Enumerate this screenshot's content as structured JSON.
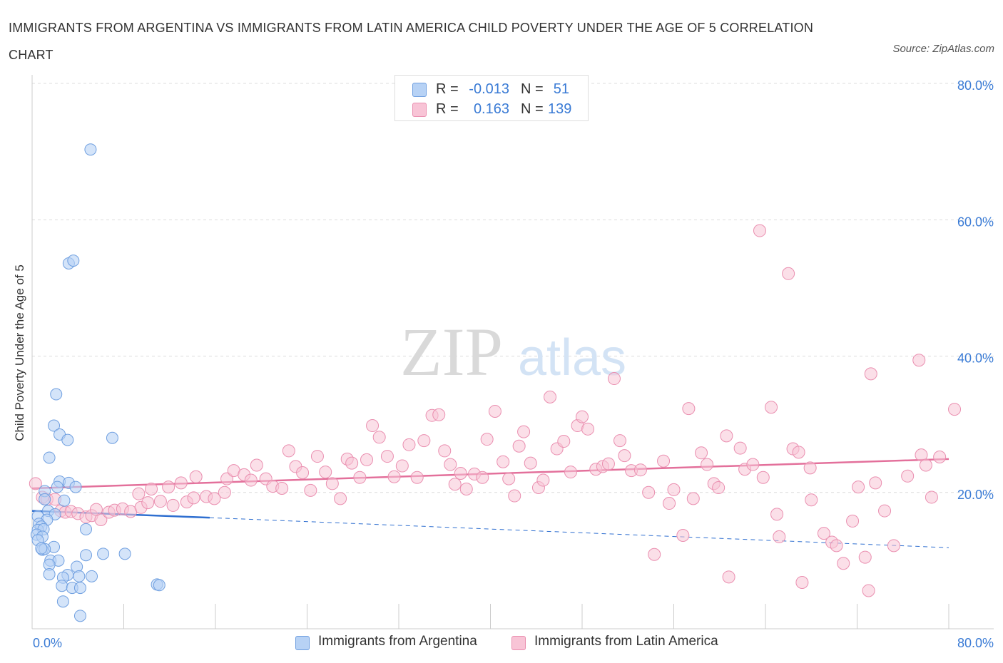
{
  "title": "IMMIGRANTS FROM ARGENTINA VS IMMIGRANTS FROM LATIN AMERICA CHILD POVERTY UNDER THE AGE OF 5 CORRELATION CHART",
  "source": "Source: ZipAtlas.com",
  "watermark": {
    "zip": "ZIP",
    "atlas": "atlas"
  },
  "legend": {
    "rows": [
      {
        "r_label": "R =",
        "r_value": "-0.013",
        "n_label": "N =",
        "n_value": "51"
      },
      {
        "r_label": "R =",
        "r_value": "0.163",
        "n_label": "N =",
        "n_value": "139"
      }
    ]
  },
  "bottom_legend": {
    "argentina": "Immigrants from Argentina",
    "latin_america": "Immigrants from Latin America"
  },
  "colors": {
    "argentina_fill": "#b7d2f5",
    "argentina_stroke": "#6f9fe0",
    "argentina_line": "#2f6fd0",
    "latin_fill": "#f8c4d6",
    "latin_stroke": "#ea8fb0",
    "latin_line": "#e3709b",
    "axis_label": "#3a7bd5",
    "grid": "#dcdcdc"
  },
  "chart_data": {
    "type": "scatter",
    "title": "IMMIGRANTS FROM ARGENTINA VS IMMIGRANTS FROM LATIN AMERICA CHILD POVERTY UNDER THE AGE OF 5 CORRELATION CHART",
    "xlabel": "",
    "ylabel": "Child Poverty Under the Age of 5",
    "xlim": [
      0,
      80
    ],
    "ylim": [
      0,
      80
    ],
    "x_tick_labels": [
      "0.0%",
      "80.0%"
    ],
    "y_tick_labels": [
      "20.0%",
      "40.0%",
      "60.0%",
      "80.0%"
    ],
    "y_ticks": [
      20,
      40,
      60,
      80
    ],
    "grid": true,
    "legend_position": "top-center",
    "series": [
      {
        "name": "Immigrants from Argentina",
        "R": -0.013,
        "N": 51,
        "trend": {
          "x": [
            0,
            15.5
          ],
          "y": [
            17.3,
            16.3
          ],
          "dashed_to": [
            80,
            11.9
          ]
        },
        "points": [
          [
            5.1,
            70.3
          ],
          [
            3.2,
            53.6
          ],
          [
            3.6,
            54.0
          ],
          [
            2.1,
            34.4
          ],
          [
            1.9,
            29.8
          ],
          [
            2.4,
            28.5
          ],
          [
            3.1,
            27.7
          ],
          [
            7.0,
            28.0
          ],
          [
            1.5,
            25.1
          ],
          [
            2.4,
            21.6
          ],
          [
            3.2,
            21.4
          ],
          [
            2.2,
            20.8
          ],
          [
            3.8,
            20.8
          ],
          [
            1.1,
            20.2
          ],
          [
            1.1,
            19.0
          ],
          [
            2.8,
            18.8
          ],
          [
            1.4,
            17.3
          ],
          [
            2.0,
            16.8
          ],
          [
            0.5,
            16.5
          ],
          [
            1.3,
            16.0
          ],
          [
            0.6,
            15.4
          ],
          [
            0.8,
            15.0
          ],
          [
            0.5,
            14.5
          ],
          [
            1.0,
            14.6
          ],
          [
            4.7,
            14.6
          ],
          [
            0.4,
            13.8
          ],
          [
            0.9,
            13.5
          ],
          [
            0.5,
            13.0
          ],
          [
            1.9,
            12.0
          ],
          [
            0.9,
            11.6
          ],
          [
            1.1,
            11.7
          ],
          [
            0.8,
            11.8
          ],
          [
            4.7,
            10.8
          ],
          [
            6.2,
            11.0
          ],
          [
            8.1,
            11.0
          ],
          [
            1.6,
            10.0
          ],
          [
            2.3,
            10.0
          ],
          [
            1.5,
            9.4
          ],
          [
            3.9,
            9.1
          ],
          [
            1.5,
            8.0
          ],
          [
            3.1,
            7.9
          ],
          [
            2.7,
            7.5
          ],
          [
            4.1,
            7.7
          ],
          [
            5.2,
            7.7
          ],
          [
            2.6,
            6.3
          ],
          [
            3.5,
            6.0
          ],
          [
            4.2,
            6.0
          ],
          [
            10.9,
            6.5
          ],
          [
            11.1,
            6.4
          ],
          [
            2.7,
            4.0
          ],
          [
            4.2,
            1.9
          ]
        ]
      },
      {
        "name": "Immigrants from Latin America",
        "R": 0.163,
        "N": 139,
        "trend": {
          "x": [
            0,
            80
          ],
          "y": [
            20.6,
            24.9
          ]
        },
        "points": [
          [
            0.3,
            21.3
          ],
          [
            0.9,
            19.3
          ],
          [
            1.3,
            19.0
          ],
          [
            2.0,
            19.0
          ],
          [
            2.5,
            17.3
          ],
          [
            2.9,
            17.1
          ],
          [
            3.4,
            17.2
          ],
          [
            4.0,
            16.9
          ],
          [
            4.7,
            16.4
          ],
          [
            5.2,
            16.6
          ],
          [
            6.0,
            16.0
          ],
          [
            5.6,
            17.5
          ],
          [
            6.7,
            17.1
          ],
          [
            7.2,
            17.4
          ],
          [
            7.9,
            17.6
          ],
          [
            8.6,
            17.2
          ],
          [
            9.5,
            17.8
          ],
          [
            10.1,
            18.5
          ],
          [
            11.2,
            18.7
          ],
          [
            12.3,
            18.1
          ],
          [
            13.5,
            18.6
          ],
          [
            14.1,
            19.2
          ],
          [
            15.2,
            19.4
          ],
          [
            15.9,
            19.1
          ],
          [
            16.8,
            20.0
          ],
          [
            9.3,
            19.8
          ],
          [
            10.4,
            20.5
          ],
          [
            11.9,
            20.8
          ],
          [
            13.0,
            21.4
          ],
          [
            14.3,
            22.3
          ],
          [
            17.0,
            22.0
          ],
          [
            17.6,
            23.2
          ],
          [
            18.5,
            22.6
          ],
          [
            19.1,
            21.8
          ],
          [
            19.6,
            24.0
          ],
          [
            20.4,
            22.0
          ],
          [
            21.0,
            20.9
          ],
          [
            21.8,
            20.6
          ],
          [
            22.4,
            26.1
          ],
          [
            23.0,
            23.8
          ],
          [
            23.6,
            22.9
          ],
          [
            24.3,
            20.3
          ],
          [
            24.9,
            25.3
          ],
          [
            25.6,
            23.0
          ],
          [
            26.2,
            21.3
          ],
          [
            26.9,
            19.1
          ],
          [
            27.5,
            24.9
          ],
          [
            27.9,
            24.3
          ],
          [
            28.6,
            22.2
          ],
          [
            29.2,
            24.8
          ],
          [
            29.7,
            29.8
          ],
          [
            30.3,
            28.1
          ],
          [
            31.0,
            25.3
          ],
          [
            31.6,
            22.3
          ],
          [
            32.3,
            23.9
          ],
          [
            32.9,
            27.0
          ],
          [
            33.6,
            22.2
          ],
          [
            34.2,
            27.6
          ],
          [
            34.9,
            31.3
          ],
          [
            35.5,
            31.4
          ],
          [
            36.0,
            26.1
          ],
          [
            36.5,
            24.1
          ],
          [
            36.9,
            21.2
          ],
          [
            37.4,
            22.8
          ],
          [
            37.9,
            20.5
          ],
          [
            38.6,
            22.7
          ],
          [
            39.3,
            22.2
          ],
          [
            39.7,
            27.8
          ],
          [
            40.4,
            31.9
          ],
          [
            41.1,
            24.5
          ],
          [
            41.6,
            22.0
          ],
          [
            42.1,
            19.5
          ],
          [
            42.5,
            26.8
          ],
          [
            42.9,
            28.9
          ],
          [
            43.5,
            24.3
          ],
          [
            44.2,
            20.7
          ],
          [
            44.6,
            21.8
          ],
          [
            45.2,
            34.0
          ],
          [
            45.8,
            26.4
          ],
          [
            46.4,
            27.5
          ],
          [
            47.0,
            23.0
          ],
          [
            47.6,
            29.8
          ],
          [
            48.0,
            31.1
          ],
          [
            48.5,
            29.3
          ],
          [
            49.2,
            23.4
          ],
          [
            49.8,
            23.8
          ],
          [
            50.3,
            24.2
          ],
          [
            50.8,
            36.7
          ],
          [
            51.3,
            27.6
          ],
          [
            51.7,
            25.4
          ],
          [
            52.3,
            23.2
          ],
          [
            53.1,
            23.3
          ],
          [
            53.8,
            20.0
          ],
          [
            54.3,
            10.9
          ],
          [
            55.1,
            24.6
          ],
          [
            55.6,
            18.4
          ],
          [
            56.0,
            20.4
          ],
          [
            56.8,
            13.7
          ],
          [
            57.3,
            32.3
          ],
          [
            57.7,
            19.1
          ],
          [
            58.4,
            25.8
          ],
          [
            58.9,
            24.1
          ],
          [
            59.5,
            21.3
          ],
          [
            59.9,
            20.7
          ],
          [
            60.6,
            28.3
          ],
          [
            60.8,
            7.6
          ],
          [
            61.8,
            26.5
          ],
          [
            62.2,
            23.4
          ],
          [
            62.9,
            24.1
          ],
          [
            63.5,
            58.4
          ],
          [
            63.8,
            22.2
          ],
          [
            64.5,
            32.5
          ],
          [
            65.0,
            16.8
          ],
          [
            65.2,
            13.5
          ],
          [
            66.4,
            26.4
          ],
          [
            66.0,
            52.1
          ],
          [
            66.9,
            25.9
          ],
          [
            67.2,
            6.8
          ],
          [
            67.9,
            23.6
          ],
          [
            68.0,
            18.9
          ],
          [
            69.1,
            14.0
          ],
          [
            69.8,
            12.7
          ],
          [
            70.2,
            12.2
          ],
          [
            70.8,
            9.6
          ],
          [
            71.6,
            15.8
          ],
          [
            72.1,
            20.8
          ],
          [
            72.7,
            10.5
          ],
          [
            73.2,
            37.4
          ],
          [
            73.0,
            5.6
          ],
          [
            74.4,
            17.3
          ],
          [
            75.2,
            12.2
          ],
          [
            76.4,
            22.4
          ],
          [
            77.4,
            39.4
          ],
          [
            77.6,
            25.5
          ],
          [
            78.0,
            24.0
          ],
          [
            78.5,
            19.3
          ],
          [
            79.2,
            25.2
          ],
          [
            80.5,
            32.2
          ],
          [
            73.6,
            21.4
          ]
        ]
      }
    ]
  }
}
